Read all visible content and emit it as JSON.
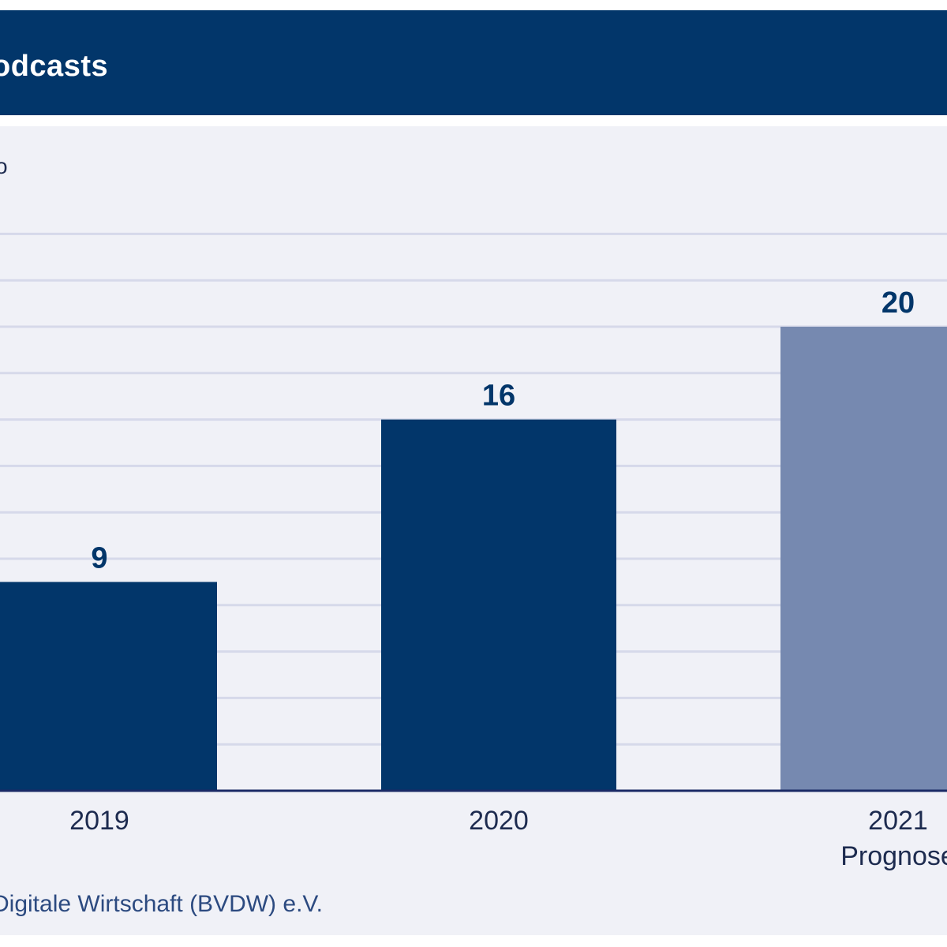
{
  "header": {
    "title": "odcasts"
  },
  "unit_label": "o",
  "source": "Digitale Wirtschaft (BVDW) e.V.",
  "colors": {
    "header_bg": "#02366a",
    "panel_bg": "#f0f1f7",
    "bar_actual": "#02366a",
    "bar_forecast": "#7689b0",
    "gridline": "#d6d9ea",
    "baseline": "#1a2a66",
    "label_text": "#1d2b4f"
  },
  "chart_data": {
    "type": "bar",
    "title": "",
    "categories": [
      [
        "2019"
      ],
      [
        "2020"
      ],
      [
        "2021",
        "Prognose"
      ]
    ],
    "values": [
      9,
      16,
      20
    ],
    "data_labels": [
      "9",
      "16",
      "20"
    ],
    "forecast": [
      false,
      false,
      true
    ],
    "ylim": [
      0,
      24
    ],
    "grid": true
  }
}
